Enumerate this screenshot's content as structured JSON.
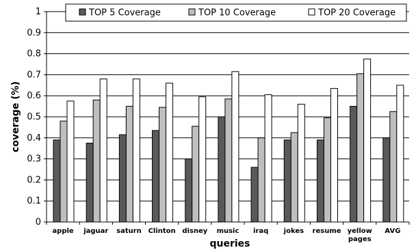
{
  "chart_data": {
    "type": "bar",
    "title": "",
    "xlabel": "queries",
    "ylabel": "coverage (%)",
    "ylim": [
      0,
      1
    ],
    "yticks": [
      "0",
      "0.1",
      "0.2",
      "0.3",
      "0.4",
      "0.5",
      "0.6",
      "0.7",
      "0.8",
      "0.9",
      "1"
    ],
    "grid": "horizontal",
    "legend_position": "top",
    "categories": [
      "apple",
      "jaguar",
      "saturn",
      "Clinton",
      "disney",
      "music",
      "iraq",
      "jokes",
      "resume",
      "yellow pages",
      "AVG"
    ],
    "category_lines": [
      [
        "apple"
      ],
      [
        "jaguar"
      ],
      [
        "saturn"
      ],
      [
        "Clinton"
      ],
      [
        "disney"
      ],
      [
        "music"
      ],
      [
        "iraq"
      ],
      [
        "jokes"
      ],
      [
        "resume"
      ],
      [
        "yellow",
        "pages"
      ],
      [
        "AVG"
      ]
    ],
    "series": [
      {
        "name": "TOP 5 Coverage",
        "color": "#5a5a5a",
        "values": [
          0.39,
          0.375,
          0.415,
          0.435,
          0.3,
          0.5,
          0.26,
          0.39,
          0.39,
          0.55,
          0.4
        ]
      },
      {
        "name": "TOP 10 Coverage",
        "color": "#bfbfbf",
        "values": [
          0.48,
          0.58,
          0.55,
          0.545,
          0.455,
          0.585,
          0.4,
          0.425,
          0.495,
          0.705,
          0.525
        ]
      },
      {
        "name": "TOP 20 Coverage",
        "color": "#ffffff",
        "values": [
          0.575,
          0.68,
          0.68,
          0.66,
          0.595,
          0.715,
          0.605,
          0.56,
          0.635,
          0.775,
          0.65
        ]
      }
    ]
  }
}
